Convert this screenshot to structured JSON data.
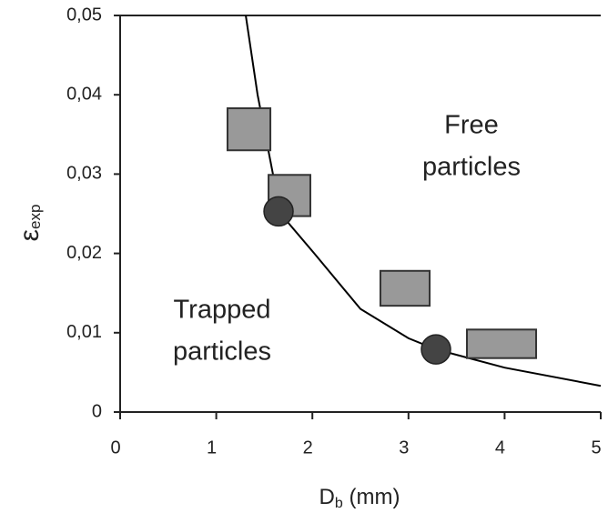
{
  "chart_data": {
    "type": "scatter",
    "xlabel": {
      "main": "D",
      "sub": "b",
      "suffix": " (mm)"
    },
    "ylabel": {
      "main": "ε",
      "sub": "exp"
    },
    "xlim": [
      0,
      5
    ],
    "ylim": [
      0,
      0.05
    ],
    "xticks": [
      0,
      1,
      2,
      3,
      4,
      5
    ],
    "yticks": [
      0,
      {
        "value": 0.01,
        "label": "0,01"
      },
      {
        "value": 0.02,
        "label": "0,02"
      },
      {
        "value": 0.03,
        "label": "0,03"
      },
      {
        "value": 0.04,
        "label": "0,04"
      },
      {
        "value": 0.05,
        "label": "0,05"
      }
    ],
    "boxes": {
      "color": "#999999",
      "x0": [
        1.117,
        1.544,
        2.708,
        3.608
      ],
      "x1": [
        1.563,
        1.979,
        3.22,
        4.328
      ],
      "y0": [
        0.033,
        0.0247,
        0.0134,
        0.0068
      ],
      "y1": [
        0.0383,
        0.0299,
        0.0178,
        0.0104
      ]
    },
    "circles": {
      "color": "#444444",
      "x": [
        1.648,
        3.286
      ],
      "y": [
        0.0253,
        0.0079
      ]
    },
    "curve": {
      "color": "#000000",
      "x": [
        1.307,
        1.43,
        1.59,
        1.648,
        2.02,
        2.5,
        3.0,
        3.286,
        4,
        5
      ],
      "y": [
        0.05,
        0.04,
        0.03,
        0.0253,
        0.02,
        0.013,
        0.0093,
        0.0079,
        0.0056,
        0.0033
      ]
    },
    "annotations": [
      [
        "Free",
        "particles"
      ],
      [
        "Trapped",
        "particles"
      ]
    ]
  }
}
